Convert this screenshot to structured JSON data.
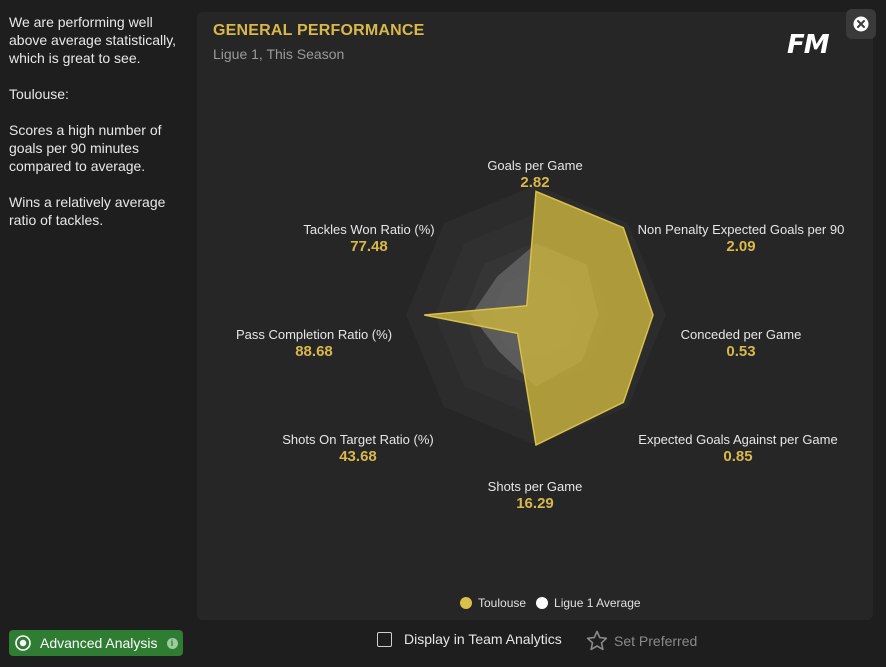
{
  "sidebar": {
    "paragraphs": [
      "We are performing well above average statistically, which is great to see.",
      "Toulouse:",
      "Scores a high number of goals per 90 minutes compared to average.",
      "Wins a relatively average ratio of tackles."
    ],
    "advanced_button": "Advanced Analysis"
  },
  "panel": {
    "title": "GENERAL PERFORMANCE",
    "subtitle": "Ligue 1, This Season",
    "logo": "FM"
  },
  "chart_data": {
    "type": "radar",
    "axes": [
      {
        "name": "Goals per Game",
        "value": "2.82"
      },
      {
        "name": "Non Penalty Expected Goals per 90",
        "value": "2.09"
      },
      {
        "name": "Conceded per Game",
        "value": "0.53"
      },
      {
        "name": "Expected Goals Against per Game",
        "value": "0.85"
      },
      {
        "name": "Shots per Game",
        "value": "16.29"
      },
      {
        "name": "Shots On Target Ratio (%)",
        "value": "43.68"
      },
      {
        "name": "Pass Completion Ratio (%)",
        "value": "88.68"
      },
      {
        "name": "Tackles Won Ratio (%)",
        "value": "77.48"
      }
    ],
    "series": [
      {
        "name": "Toulouse",
        "color": "#c9b23e",
        "relative": [
          0.95,
          0.95,
          0.9,
          0.95,
          1.0,
          0.2,
          0.86,
          0.1
        ]
      },
      {
        "name": "Ligue 1 Average",
        "color": "#ffffff",
        "relative": [
          0.55,
          0.55,
          0.48,
          0.5,
          0.55,
          0.4,
          0.5,
          0.42
        ]
      }
    ]
  },
  "legend": [
    "Toulouse",
    "Ligue 1 Average"
  ],
  "footer": {
    "display_label": "Display in Team Analytics",
    "preferred_label": "Set Preferred"
  },
  "colors": {
    "accent": "#d8b84a",
    "button_green": "#2e7d32"
  },
  "icons": {
    "close": "close-icon",
    "star": "star-icon",
    "analysis": "analysis-icon"
  }
}
